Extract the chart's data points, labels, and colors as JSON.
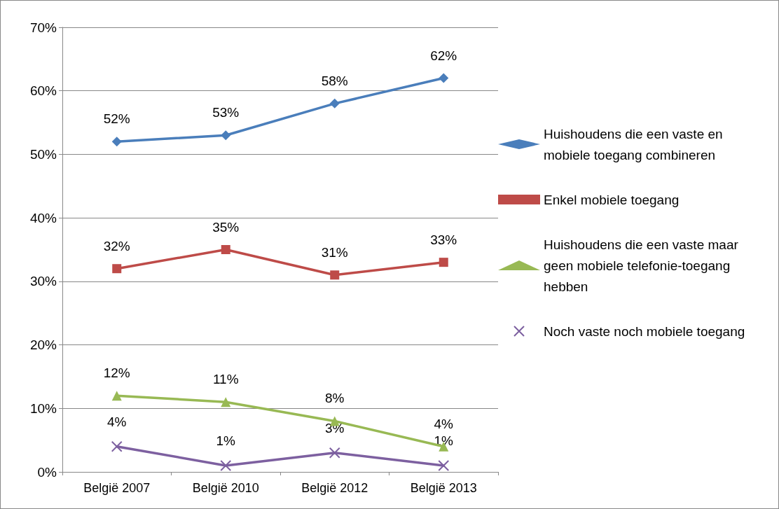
{
  "chart_data": {
    "type": "line",
    "categories": [
      "België 2007",
      "België 2010",
      "België 2012",
      "België 2013"
    ],
    "ylim": [
      0,
      70
    ],
    "yticks": [
      {
        "value": 0,
        "label": "0%"
      },
      {
        "value": 10,
        "label": "10%"
      },
      {
        "value": 20,
        "label": "20%"
      },
      {
        "value": 30,
        "label": "30%"
      },
      {
        "value": 40,
        "label": "40%"
      },
      {
        "value": 50,
        "label": "50%"
      },
      {
        "value": 60,
        "label": "60%"
      },
      {
        "value": 70,
        "label": "70%"
      }
    ],
    "grid": "y",
    "legend": "right",
    "series": [
      {
        "name": "Huishoudens die een vaste en mobiele toegang combineren",
        "color": "#4a7ebb",
        "marker": "diamond",
        "values": [
          52,
          53,
          58,
          62
        ],
        "value_labels": [
          "52%",
          "53%",
          "58%",
          "62%"
        ]
      },
      {
        "name": "Enkel mobiele toegang",
        "color": "#be4b48",
        "marker": "square",
        "values": [
          32,
          35,
          31,
          33
        ],
        "value_labels": [
          "32%",
          "35%",
          "31%",
          "33%"
        ]
      },
      {
        "name": "Huishoudens die een vaste maar geen mobiele telefonie-toegang hebben",
        "color": "#98b954",
        "marker": "triangle",
        "values": [
          12,
          11,
          8,
          4
        ],
        "value_labels": [
          "12%",
          "11%",
          "8%",
          "4%"
        ]
      },
      {
        "name": "Noch vaste noch mobiele toegang",
        "color": "#7d60a0",
        "marker": "cross",
        "values": [
          4,
          1,
          3,
          1
        ],
        "value_labels": [
          "4%",
          "1%",
          "3%",
          "1%"
        ]
      }
    ]
  }
}
